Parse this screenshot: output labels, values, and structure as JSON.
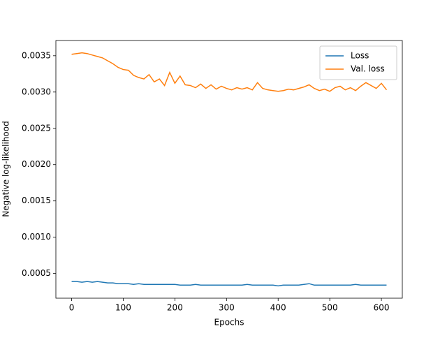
{
  "chart_data": {
    "type": "line",
    "xlabel": "Epochs",
    "ylabel": "Negative log-likelihood",
    "x": [
      0,
      10,
      20,
      30,
      40,
      50,
      60,
      70,
      80,
      90,
      100,
      110,
      120,
      130,
      140,
      150,
      160,
      170,
      180,
      190,
      200,
      210,
      220,
      230,
      240,
      250,
      260,
      270,
      280,
      290,
      300,
      310,
      320,
      330,
      340,
      350,
      360,
      370,
      380,
      390,
      400,
      410,
      420,
      430,
      440,
      450,
      460,
      470,
      480,
      490,
      500,
      510,
      520,
      530,
      540,
      550,
      560,
      570,
      580,
      590,
      600,
      610
    ],
    "series": [
      {
        "name": "Loss",
        "color": "#1f77b4",
        "values": [
          0.00039,
          0.00039,
          0.00038,
          0.00039,
          0.00038,
          0.00039,
          0.00038,
          0.00037,
          0.00037,
          0.00036,
          0.00036,
          0.00036,
          0.00035,
          0.00036,
          0.00035,
          0.00035,
          0.00035,
          0.00035,
          0.00035,
          0.00035,
          0.00035,
          0.00034,
          0.00034,
          0.00034,
          0.00035,
          0.00034,
          0.00034,
          0.00034,
          0.00034,
          0.00034,
          0.00034,
          0.00034,
          0.00034,
          0.00034,
          0.00035,
          0.00034,
          0.00034,
          0.00034,
          0.00034,
          0.00034,
          0.00033,
          0.00034,
          0.00034,
          0.00034,
          0.00034,
          0.00035,
          0.00036,
          0.00034,
          0.00034,
          0.00034,
          0.00034,
          0.00034,
          0.00034,
          0.00034,
          0.00034,
          0.00035,
          0.00034,
          0.00034,
          0.00034,
          0.00034,
          0.00034,
          0.00034
        ]
      },
      {
        "name": "Val. loss",
        "color": "#ff7f0e",
        "values": [
          0.00352,
          0.00353,
          0.00354,
          0.00353,
          0.00351,
          0.00349,
          0.00347,
          0.00343,
          0.00339,
          0.00334,
          0.00331,
          0.0033,
          0.00323,
          0.0032,
          0.00318,
          0.00324,
          0.00314,
          0.00318,
          0.00309,
          0.00327,
          0.00312,
          0.00322,
          0.0031,
          0.00309,
          0.00306,
          0.00311,
          0.00305,
          0.0031,
          0.00304,
          0.00308,
          0.00305,
          0.00303,
          0.00306,
          0.00304,
          0.00306,
          0.00303,
          0.00313,
          0.00305,
          0.00303,
          0.00302,
          0.00301,
          0.00302,
          0.00304,
          0.00303,
          0.00305,
          0.00307,
          0.0031,
          0.00305,
          0.00302,
          0.00304,
          0.00301,
          0.00306,
          0.00308,
          0.00303,
          0.00306,
          0.00302,
          0.00308,
          0.00313,
          0.00309,
          0.00305,
          0.00312,
          0.00303
        ]
      }
    ],
    "xlim": [
      -30.5,
      640.5
    ],
    "xticks": [
      0,
      100,
      200,
      300,
      400,
      500,
      600
    ],
    "ylim": [
      0.00016,
      0.00371
    ],
    "yticks": [
      0.0005,
      {
        "value": 0.001,
        "label": "0.0010"
      },
      0.0015,
      {
        "value": 0.002,
        "label": "0.0020"
      },
      0.0025,
      {
        "value": 0.003,
        "label": "0.0030"
      },
      0.0035
    ],
    "grid": false,
    "legend": "upper right"
  }
}
